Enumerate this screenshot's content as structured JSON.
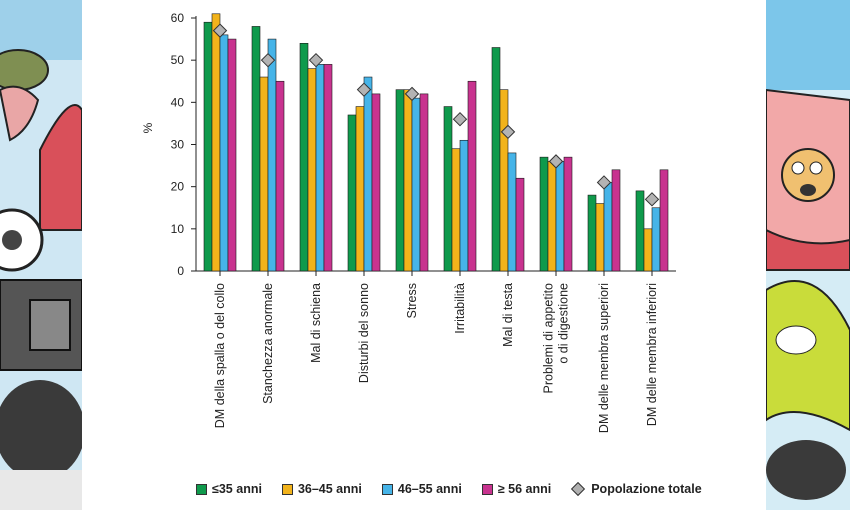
{
  "chart_data": {
    "type": "bar",
    "ylabel": "%",
    "ylim": [
      0,
      60
    ],
    "yticks": [
      0,
      10,
      20,
      30,
      40,
      50,
      60
    ],
    "categories": [
      [
        "DM della spalla o del collo"
      ],
      [
        "Stanchezza anormale"
      ],
      [
        "Mal di schiena"
      ],
      [
        "Disturbi del sonno"
      ],
      [
        "Stress"
      ],
      [
        "Irritabilità"
      ],
      [
        "Mal di testa"
      ],
      [
        "Problemi di appetito",
        "o di digestione"
      ],
      [
        "DM delle membra superiori"
      ],
      [
        "DM delle membra inferiori"
      ]
    ],
    "series": [
      {
        "name": "≤35 anni",
        "color": "#0f9a4c",
        "values": [
          59,
          58,
          54,
          37,
          43,
          39,
          53,
          27,
          18,
          19
        ]
      },
      {
        "name": "36–45 anni",
        "color": "#f2b31b",
        "values": [
          61,
          46,
          48,
          39,
          43,
          29,
          43,
          26,
          16,
          10
        ]
      },
      {
        "name": "46–55 anni",
        "color": "#46b4e8",
        "values": [
          56,
          55,
          49,
          46,
          41,
          31,
          28,
          26,
          21,
          15
        ]
      },
      {
        "name": "≥ 56 anni",
        "color": "#c8338f",
        "values": [
          55,
          45,
          49,
          42,
          42,
          45,
          22,
          27,
          24,
          24
        ]
      }
    ],
    "total": {
      "name": "Popolazione totale",
      "color": "#b3b3b3",
      "values": [
        57,
        50,
        50,
        43,
        42,
        36,
        33,
        26,
        21,
        17
      ]
    },
    "grid": false,
    "legend_position": "bottom"
  }
}
